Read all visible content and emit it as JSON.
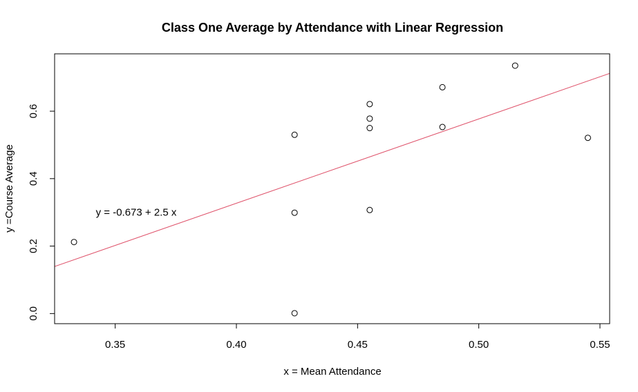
{
  "chart_data": {
    "type": "scatter",
    "title": "Class One Average by Attendance with Linear Regression",
    "xlabel": "x = Mean Attendance",
    "ylabel": "y =Course Average",
    "xlim": [
      0.325,
      0.554
    ],
    "ylim": [
      -0.03,
      0.77
    ],
    "x_ticks": [
      0.35,
      0.4,
      0.45,
      0.5,
      0.55
    ],
    "x_tick_labels": [
      "0.35",
      "0.40",
      "0.45",
      "0.50",
      "0.55"
    ],
    "y_ticks": [
      0.0,
      0.2,
      0.4,
      0.6
    ],
    "y_tick_labels": [
      "0.0",
      "0.2",
      "0.4",
      "0.6"
    ],
    "grid": false,
    "points": [
      {
        "x": 0.333,
        "y": 0.212
      },
      {
        "x": 0.424,
        "y": 0.53
      },
      {
        "x": 0.424,
        "y": 0.299
      },
      {
        "x": 0.424,
        "y": 0.001
      },
      {
        "x": 0.455,
        "y": 0.621
      },
      {
        "x": 0.455,
        "y": 0.578
      },
      {
        "x": 0.455,
        "y": 0.55
      },
      {
        "x": 0.455,
        "y": 0.307
      },
      {
        "x": 0.485,
        "y": 0.671
      },
      {
        "x": 0.485,
        "y": 0.553
      },
      {
        "x": 0.515,
        "y": 0.735
      },
      {
        "x": 0.545,
        "y": 0.521
      }
    ],
    "point_color": "#000000",
    "regression": {
      "intercept": -0.673,
      "slope": 2.5,
      "color": "#DF536B",
      "label": "y =  -0.673 + 2.5 x",
      "label_x": 0.342,
      "label_y": 0.3
    }
  }
}
